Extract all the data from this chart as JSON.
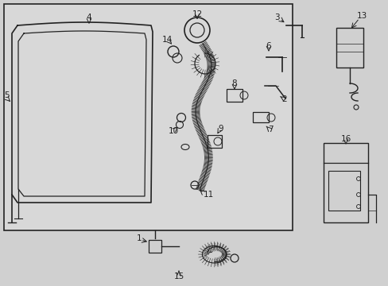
{
  "bg_color": "#d0d0d0",
  "box_bg": "#d8d8d8",
  "lc": "#222222",
  "fig_w": 4.89,
  "fig_h": 3.6,
  "dpi": 100
}
